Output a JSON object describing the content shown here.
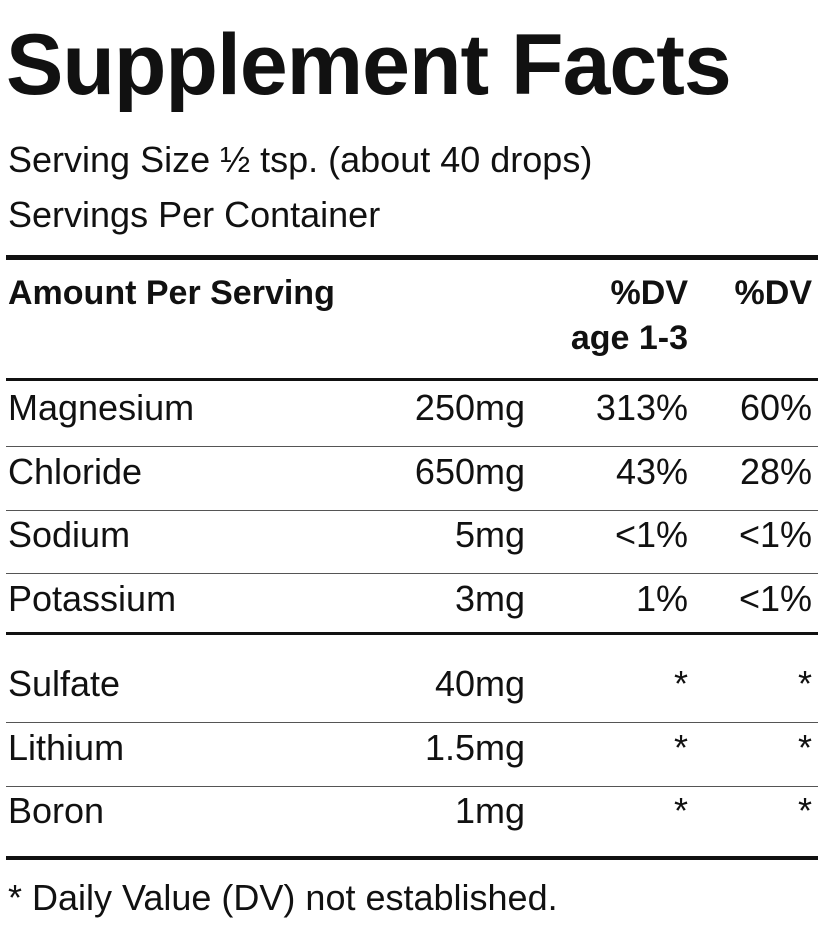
{
  "title": "Supplement Facts",
  "serving_size": "Serving Size ½ tsp. (about 40 drops)",
  "servings_per_container": "Servings Per Container",
  "header": {
    "amount": "Amount Per Serving",
    "dv1": [
      "%DV",
      "age 1-3"
    ],
    "dv2": "%DV"
  },
  "groups": [
    [
      [
        "Magnesium",
        "250mg",
        "313%",
        "60%"
      ],
      [
        "Chloride",
        "650mg",
        "43%",
        "28%"
      ],
      [
        "Sodium",
        "5mg",
        "<1%",
        "<1%"
      ],
      [
        "Potassium",
        "3mg",
        "1%",
        "<1%"
      ]
    ],
    [
      [
        "Sulfate",
        "40mg",
        "*",
        "*"
      ],
      [
        "Lithium",
        "1.5mg",
        "*",
        "*"
      ],
      [
        "Boron",
        "1mg",
        "*",
        "*"
      ]
    ]
  ],
  "footnote": "* Daily Value (DV) not established."
}
